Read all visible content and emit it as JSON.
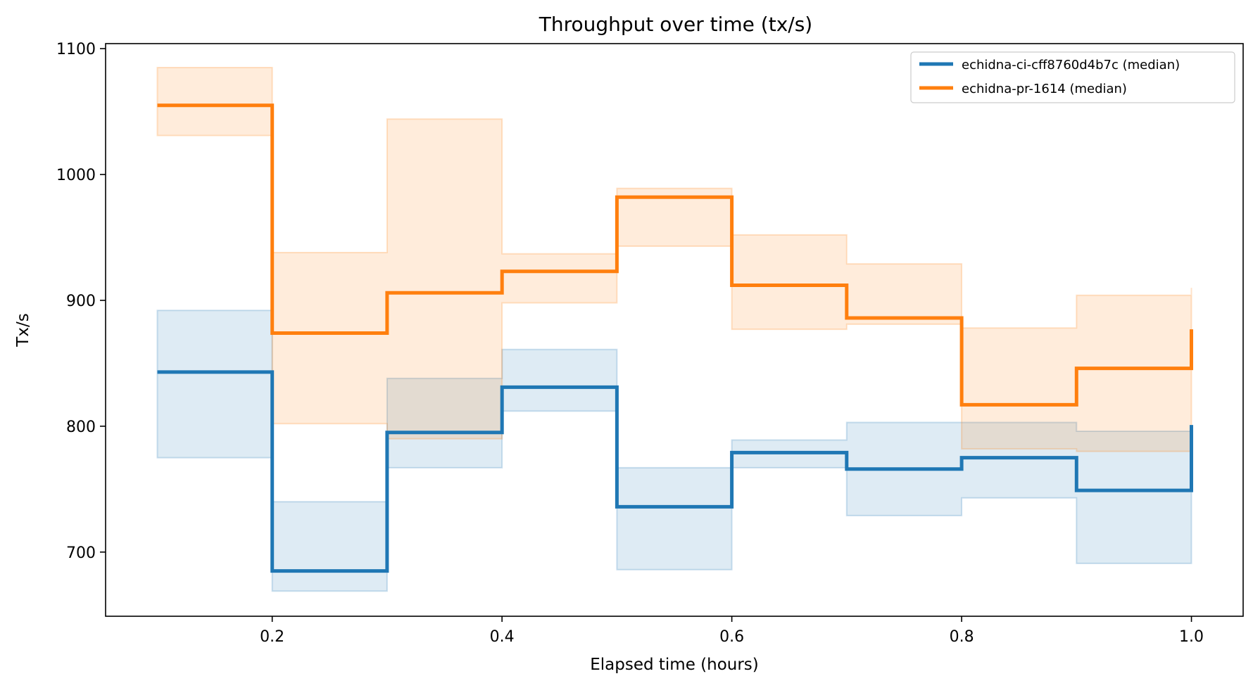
{
  "chart_data": {
    "type": "line",
    "step": "post",
    "title": "Throughput over time (tx/s)",
    "xlabel": "Elapsed time (hours)",
    "ylabel": "Tx/s",
    "xlim": [
      0.055,
      1.045
    ],
    "ylim": [
      649,
      1104
    ],
    "xticks": [
      0.2,
      0.4,
      0.6,
      0.8,
      1.0
    ],
    "xtick_labels": [
      "0.2",
      "0.4",
      "0.6",
      "0.8",
      "1.0"
    ],
    "yticks": [
      700,
      800,
      900,
      1000,
      1100
    ],
    "ytick_labels": [
      "700",
      "800",
      "900",
      "1000",
      "1100"
    ],
    "grid": false,
    "legend_position": "top-right",
    "x": [
      0.1,
      0.2,
      0.3,
      0.4,
      0.5,
      0.6,
      0.7,
      0.8,
      0.9,
      1.0
    ],
    "series": [
      {
        "name": "echidna-ci-cff8760d4b7c (median)",
        "color": "#1f77b4",
        "values": [
          843,
          685,
          795,
          831,
          736,
          779,
          766,
          775,
          749,
          801
        ],
        "band_low": [
          775,
          669,
          767,
          812,
          686,
          767,
          729,
          743,
          691,
          691
        ],
        "band_high": [
          892,
          740,
          838,
          861,
          767,
          789,
          803,
          803,
          796,
          796
        ]
      },
      {
        "name": "echidna-pr-1614 (median)",
        "color": "#ff7f0e",
        "values": [
          1055,
          874,
          906,
          923,
          982,
          912,
          886,
          817,
          846,
          877
        ],
        "band_low": [
          1031,
          802,
          790,
          898,
          943,
          877,
          881,
          782,
          780,
          780
        ],
        "band_high": [
          1085,
          938,
          1044,
          937,
          989,
          952,
          929,
          878,
          904,
          910
        ]
      }
    ]
  }
}
